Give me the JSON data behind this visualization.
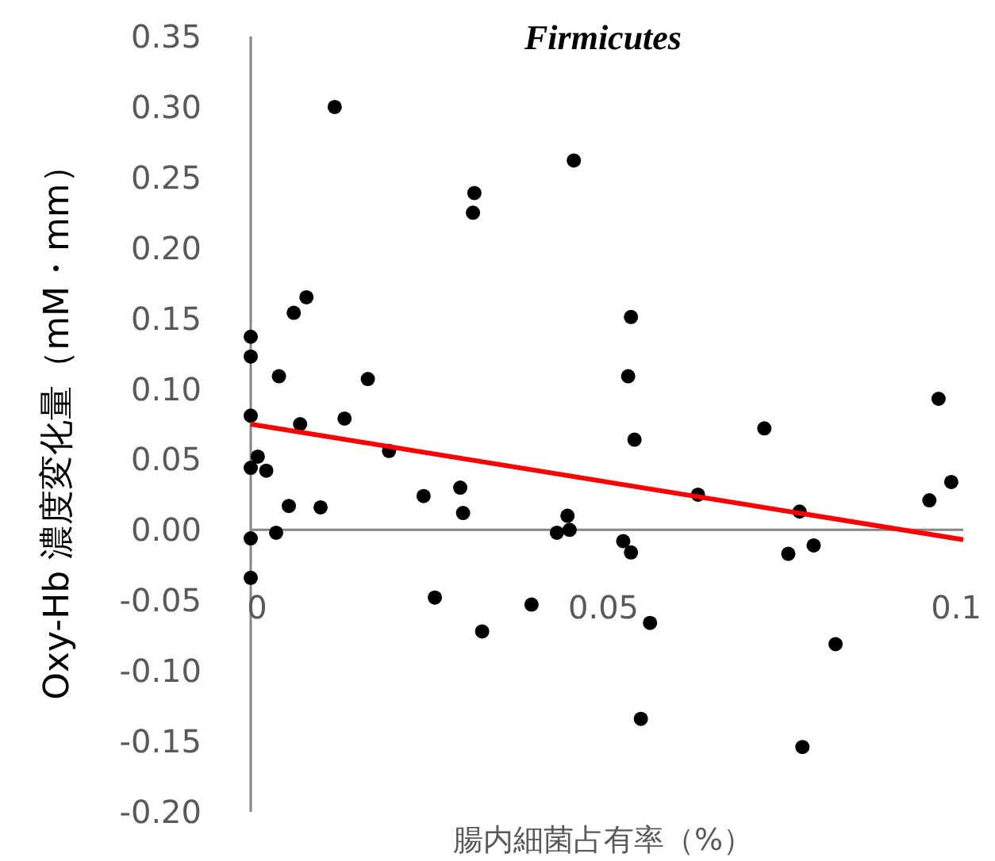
{
  "chart_data": {
    "type": "scatter",
    "title": "*Firmicutes*",
    "xlabel": "腸内細菌占有率（%）",
    "ylabel": "Oxy-Hb 濃度変化量（mM・mm）",
    "xlim": [
      0,
      0.101
    ],
    "ylim": [
      -0.2,
      0.35
    ],
    "xticks": [
      0,
      0.05,
      0.1
    ],
    "yticks": [
      {
        "value": -0.2,
        "label": "-0.20"
      },
      {
        "value": -0.15,
        "label": "-0.15"
      },
      {
        "value": -0.1,
        "label": "-0.10"
      },
      {
        "value": -0.05,
        "label": "-0.05"
      },
      {
        "value": 0,
        "label": "0.00"
      },
      {
        "value": 0.05,
        "label": "0.05"
      },
      {
        "value": 0.1,
        "label": "0.10"
      },
      {
        "value": 0.15,
        "label": "0.15"
      },
      {
        "value": 0.2,
        "label": "0.20"
      },
      {
        "value": 0.25,
        "label": "0.25"
      },
      {
        "value": 0.3,
        "label": "0.30"
      },
      {
        "value": 0.35,
        "label": "0.35"
      }
    ],
    "series": [
      {
        "marker": "circle",
        "color": "#000000",
        "x": [
          0.0119,
          0.0317,
          0.0315,
          0.0458,
          0.0079,
          0.0061,
          0,
          0,
          0.004,
          0.0166,
          0.0539,
          0.0535,
          0.0544,
          0,
          0.007,
          0.0133,
          0.0196,
          0.001,
          0,
          0.0022,
          0.0054,
          0.0099,
          0.0245,
          0.0297,
          0.0301,
          0.0036,
          0,
          0,
          0.0449,
          0.0452,
          0.0434,
          0.0528,
          0.0539,
          0.0634,
          0.0566,
          0.0398,
          0.0261,
          0.0328,
          0.0553,
          0.0728,
          0.0778,
          0.0762,
          0.0798,
          0.0829,
          0.0782,
          0.0975,
          0.0962,
          0.0993
        ],
        "values": [
          0.3,
          0.239,
          0.225,
          0.262,
          0.165,
          0.154,
          0.137,
          0.123,
          0.109,
          0.107,
          0.151,
          0.109,
          0.064,
          0.081,
          0.075,
          0.079,
          0.056,
          0.052,
          0.044,
          0.042,
          0.017,
          0.016,
          0.024,
          0.03,
          0.012,
          -0.002,
          -0.006,
          -0.034,
          0.01,
          0.0,
          -0.002,
          -0.008,
          -0.016,
          0.025,
          -0.066,
          -0.053,
          -0.048,
          -0.072,
          -0.134,
          0.072,
          0.013,
          -0.017,
          -0.011,
          -0.081,
          -0.154,
          0.093,
          0.021,
          0.034
        ]
      },
      {
        "type": "line",
        "color": "#ff0000",
        "x": [
          0,
          0.101
        ],
        "values": [
          0.075,
          -0.007
        ]
      }
    ]
  }
}
